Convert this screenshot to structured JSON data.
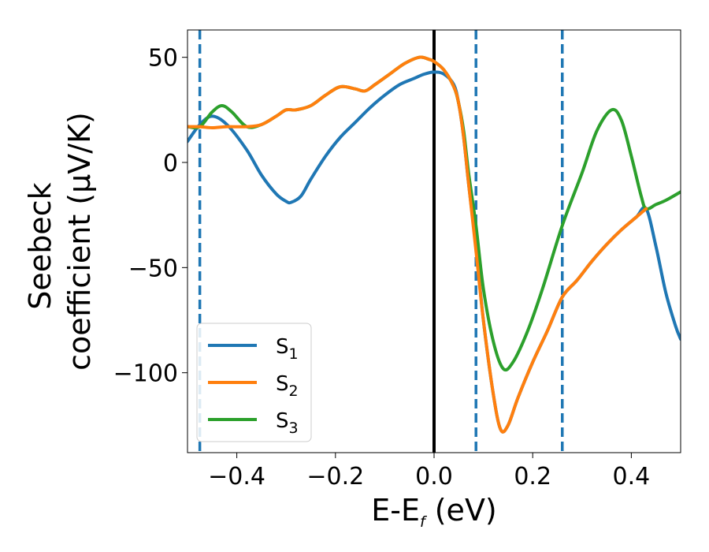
{
  "chart_data": {
    "type": "line",
    "xlabel": "E-E",
    "xlabel_sub": "f",
    "xlabel_unit": " (eV)",
    "ylabel_line1": "Seebeck",
    "ylabel_line2": "coefficient  (μV/K)",
    "xlim": [
      -0.5,
      0.5
    ],
    "ylim": [
      -138,
      63
    ],
    "xticks": [
      -0.4,
      -0.2,
      0.0,
      0.2,
      0.4
    ],
    "xtick_labels": [
      "−0.4",
      "−0.2",
      "0.0",
      "0.2",
      "0.4"
    ],
    "yticks": [
      50,
      0,
      -50,
      -100
    ],
    "ytick_labels": [
      "50",
      "0",
      "−50",
      "−100"
    ],
    "grid": false,
    "legend_position": "lower-left",
    "vlines": [
      {
        "x": 0.0,
        "style": "solid",
        "color": "#000000"
      },
      {
        "x": -0.475,
        "style": "dashed",
        "color": "#1f77b4"
      },
      {
        "x": 0.085,
        "style": "dashed",
        "color": "#1f77b4"
      },
      {
        "x": 0.26,
        "style": "dashed",
        "color": "#1f77b4"
      }
    ],
    "series": [
      {
        "name": "S",
        "sub": "1",
        "color": "#1f77b4",
        "x": [
          -0.5,
          -0.475,
          -0.45,
          -0.42,
          -0.38,
          -0.35,
          -0.32,
          -0.3,
          -0.29,
          -0.27,
          -0.25,
          -0.22,
          -0.19,
          -0.16,
          -0.13,
          -0.1,
          -0.07,
          -0.04,
          -0.02,
          0.0,
          0.02,
          0.04,
          0.05,
          0.06,
          0.07,
          0.085,
          0.1,
          0.12,
          0.135,
          0.15,
          0.17,
          0.2,
          0.23,
          0.26,
          0.29,
          0.32,
          0.35,
          0.38,
          0.41,
          0.43,
          0.45,
          0.47,
          0.49,
          0.5
        ],
        "y": [
          10,
          18,
          22,
          18,
          6,
          -6,
          -15,
          -18.5,
          -19,
          -16,
          -8,
          3,
          12,
          19,
          26,
          32,
          37,
          40,
          42,
          43,
          42,
          37,
          28,
          12,
          -10,
          -40,
          -75,
          -110,
          -127,
          -125,
          -112,
          -95,
          -80,
          -64,
          -56,
          -47,
          -39,
          -32,
          -26,
          -22,
          -40,
          -62,
          -78,
          -84
        ]
      },
      {
        "name": "S",
        "sub": "2",
        "color": "#ff7f0e",
        "x": [
          -0.5,
          -0.475,
          -0.45,
          -0.42,
          -0.38,
          -0.35,
          -0.32,
          -0.3,
          -0.28,
          -0.25,
          -0.22,
          -0.19,
          -0.16,
          -0.14,
          -0.12,
          -0.09,
          -0.06,
          -0.03,
          -0.01,
          0.0,
          0.02,
          0.04,
          0.05,
          0.06,
          0.07,
          0.085,
          0.1,
          0.12,
          0.135,
          0.15,
          0.17,
          0.2,
          0.23,
          0.26,
          0.29,
          0.32,
          0.35,
          0.38,
          0.41,
          0.43
        ],
        "y": [
          17,
          17,
          16.5,
          17,
          17,
          18,
          22,
          25,
          25,
          27,
          32,
          36,
          35,
          34,
          37,
          42,
          47,
          50,
          49,
          48,
          44,
          36,
          28,
          12,
          -10,
          -42,
          -75,
          -110,
          -127,
          -125,
          -112,
          -95,
          -80,
          -64,
          -56,
          -47,
          -39,
          -32,
          -26,
          -22
        ]
      },
      {
        "name": "S",
        "sub": "3",
        "color": "#2ca02c",
        "x": [
          -0.5,
          -0.475,
          -0.45,
          -0.43,
          -0.41,
          -0.38,
          -0.35,
          -0.32,
          -0.3,
          -0.28,
          -0.25,
          -0.22,
          -0.19,
          -0.16,
          -0.14,
          -0.12,
          -0.09,
          -0.06,
          -0.03,
          -0.01,
          0.0,
          0.02,
          0.04,
          0.05,
          0.06,
          0.07,
          0.085,
          0.1,
          0.12,
          0.14,
          0.16,
          0.19,
          0.22,
          0.26,
          0.3,
          0.33,
          0.36,
          0.38,
          0.4,
          0.42,
          0.43,
          0.45,
          0.47,
          0.5
        ],
        "y": [
          17,
          17,
          24,
          27,
          24,
          17,
          18,
          22,
          25,
          25,
          27,
          32,
          36,
          35,
          34,
          37,
          42,
          47,
          50,
          49,
          48,
          44,
          36,
          28,
          15,
          -5,
          -30,
          -60,
          -85,
          -98,
          -95,
          -80,
          -60,
          -30,
          -5,
          15,
          25,
          20,
          3,
          -16,
          -22,
          -20,
          -18,
          -14
        ]
      }
    ]
  }
}
